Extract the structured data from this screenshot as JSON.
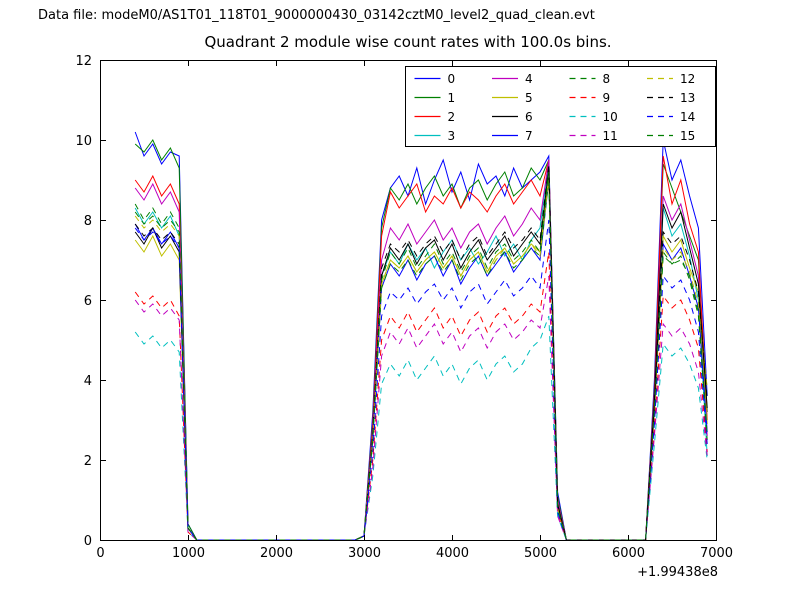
{
  "figure": {
    "data_file_label": "Data file: modeM0/AS1T01_118T01_9000000430_03142cztM0_level2_quad_clean.evt"
  },
  "chart_data": {
    "type": "line",
    "title": "Quadrant 2 module wise count rates with 100.0s bins.",
    "xlabel": "",
    "ylabel": "",
    "xlim": [
      0,
      7000
    ],
    "ylim": [
      0,
      12
    ],
    "xticks": [
      0,
      1000,
      2000,
      3000,
      4000,
      5000,
      6000,
      7000
    ],
    "yticks": [
      0,
      2,
      4,
      6,
      8,
      10,
      12
    ],
    "x_offset_text": "+1.99438e8",
    "grid": false,
    "legend_position": "upper right inside, 4 columns",
    "x": [
      400,
      500,
      600,
      700,
      800,
      900,
      1000,
      1100,
      1200,
      1300,
      1400,
      1500,
      1600,
      1700,
      1800,
      1900,
      2000,
      2100,
      2200,
      2300,
      2400,
      2500,
      2600,
      2700,
      2800,
      2900,
      3000,
      3100,
      3200,
      3300,
      3400,
      3500,
      3600,
      3700,
      3800,
      3900,
      4000,
      4100,
      4200,
      4300,
      4400,
      4500,
      4600,
      4700,
      4800,
      4900,
      5000,
      5100,
      5200,
      5300,
      5400,
      5500,
      5600,
      5700,
      5800,
      5900,
      6000,
      6100,
      6200,
      6300,
      6400,
      6500,
      6600,
      6700,
      6800,
      6900
    ],
    "series": [
      {
        "name": "0",
        "color": "#0000ff",
        "dashed": false,
        "values": [
          10.2,
          9.6,
          9.9,
          9.4,
          9.7,
          9.6,
          0.4,
          0,
          0,
          0,
          0,
          0,
          0,
          0,
          0,
          0,
          0,
          0,
          0,
          0,
          0,
          0,
          0,
          0,
          0,
          0,
          0.1,
          3.2,
          8.0,
          8.8,
          9.1,
          8.6,
          9.3,
          8.4,
          9.0,
          9.5,
          8.7,
          9.2,
          8.5,
          9.4,
          8.9,
          9.1,
          8.6,
          9.3,
          8.8,
          9.0,
          9.2,
          9.6,
          1.2,
          0,
          0,
          0,
          0,
          0,
          0,
          0,
          0,
          0,
          0,
          4.0,
          10.0,
          9.0,
          9.5,
          8.6,
          7.8,
          3.6
        ]
      },
      {
        "name": "1",
        "color": "#008000",
        "dashed": false,
        "values": [
          9.9,
          9.7,
          10.0,
          9.5,
          9.8,
          9.3,
          0.4,
          0,
          0,
          0,
          0,
          0,
          0,
          0,
          0,
          0,
          0,
          0,
          0,
          0,
          0,
          0,
          0,
          0,
          0,
          0,
          0.1,
          3.0,
          7.8,
          8.8,
          8.5,
          8.9,
          8.4,
          8.8,
          9.1,
          8.6,
          8.9,
          8.3,
          8.8,
          9.0,
          8.5,
          8.9,
          9.2,
          8.6,
          8.8,
          9.3,
          9.0,
          9.5,
          1.1,
          0,
          0,
          0,
          0,
          0,
          0,
          0,
          0,
          0,
          0,
          3.8,
          9.4,
          8.8,
          8.2,
          7.6,
          7.0,
          3.2
        ]
      },
      {
        "name": "2",
        "color": "#ff0000",
        "dashed": false,
        "values": [
          9.0,
          8.7,
          9.1,
          8.6,
          8.9,
          8.4,
          0.3,
          0,
          0,
          0,
          0,
          0,
          0,
          0,
          0,
          0,
          0,
          0,
          0,
          0,
          0,
          0,
          0,
          0,
          0,
          0,
          0.1,
          2.9,
          7.6,
          8.7,
          8.3,
          8.6,
          8.9,
          8.2,
          8.6,
          8.4,
          8.8,
          8.3,
          8.7,
          8.5,
          8.2,
          8.6,
          8.9,
          8.4,
          8.7,
          9.0,
          8.6,
          9.5,
          1.0,
          0,
          0,
          0,
          0,
          0,
          0,
          0,
          0,
          0,
          0,
          3.7,
          9.6,
          8.4,
          9.0,
          7.9,
          7.2,
          3.0
        ]
      },
      {
        "name": "3",
        "color": "#00bfbf",
        "dashed": false,
        "values": [
          8.3,
          7.9,
          8.2,
          7.8,
          8.1,
          7.6,
          0.3,
          0,
          0,
          0,
          0,
          0,
          0,
          0,
          0,
          0,
          0,
          0,
          0,
          0,
          0,
          0,
          0,
          0,
          0,
          0,
          0.1,
          2.6,
          6.6,
          7.2,
          6.9,
          7.4,
          7.0,
          7.3,
          6.8,
          7.2,
          7.5,
          7.0,
          7.3,
          6.9,
          7.2,
          7.6,
          7.1,
          7.4,
          7.0,
          7.5,
          7.8,
          9.4,
          0.9,
          0,
          0,
          0,
          0,
          0,
          0,
          0,
          0,
          0,
          0,
          3.4,
          8.3,
          7.6,
          7.9,
          7.1,
          6.0,
          2.1
        ]
      },
      {
        "name": "4",
        "color": "#bf00bf",
        "dashed": false,
        "values": [
          8.8,
          8.5,
          8.9,
          8.4,
          8.7,
          8.2,
          0.3,
          0,
          0,
          0,
          0,
          0,
          0,
          0,
          0,
          0,
          0,
          0,
          0,
          0,
          0,
          0,
          0,
          0,
          0,
          0,
          0.1,
          2.8,
          7.0,
          7.8,
          7.5,
          7.9,
          7.4,
          7.7,
          8.0,
          7.5,
          7.8,
          7.3,
          7.7,
          7.9,
          7.4,
          7.8,
          8.1,
          7.6,
          7.9,
          8.3,
          8.0,
          9.5,
          1.0,
          0,
          0,
          0,
          0,
          0,
          0,
          0,
          0,
          0,
          0,
          3.6,
          8.6,
          8.0,
          8.4,
          7.5,
          6.6,
          2.6
        ]
      },
      {
        "name": "5",
        "color": "#bfbf00",
        "dashed": false,
        "values": [
          7.5,
          7.2,
          7.6,
          7.1,
          7.4,
          7.0,
          0.3,
          0,
          0,
          0,
          0,
          0,
          0,
          0,
          0,
          0,
          0,
          0,
          0,
          0,
          0,
          0,
          0,
          0,
          0,
          0,
          0.1,
          2.5,
          6.4,
          7.0,
          6.8,
          7.1,
          6.7,
          7.0,
          7.2,
          6.8,
          7.1,
          6.6,
          7.0,
          7.2,
          6.7,
          7.1,
          7.3,
          6.9,
          7.1,
          7.4,
          7.2,
          9.1,
          0.9,
          0,
          0,
          0,
          0,
          0,
          0,
          0,
          0,
          0,
          0,
          3.3,
          7.6,
          7.2,
          7.5,
          6.8,
          6.2,
          2.9
        ]
      },
      {
        "name": "6",
        "color": "#000000",
        "dashed": false,
        "values": [
          7.7,
          7.4,
          7.8,
          7.3,
          7.6,
          7.2,
          0.3,
          0,
          0,
          0,
          0,
          0,
          0,
          0,
          0,
          0,
          0,
          0,
          0,
          0,
          0,
          0,
          0,
          0,
          0,
          0,
          0.1,
          2.6,
          6.6,
          7.3,
          7.0,
          7.4,
          6.9,
          7.3,
          7.5,
          7.0,
          7.4,
          6.8,
          7.2,
          7.5,
          7.0,
          7.3,
          7.6,
          7.1,
          7.4,
          7.7,
          7.4,
          9.3,
          0.9,
          0,
          0,
          0,
          0,
          0,
          0,
          0,
          0,
          0,
          0,
          3.5,
          8.4,
          7.8,
          8.2,
          7.3,
          6.4,
          3.3
        ]
      },
      {
        "name": "7",
        "color": "#0000ff",
        "dashed": false,
        "values": [
          7.9,
          7.5,
          7.8,
          7.4,
          7.7,
          7.3,
          0.3,
          0,
          0,
          0,
          0,
          0,
          0,
          0,
          0,
          0,
          0,
          0,
          0,
          0,
          0,
          0,
          0,
          0,
          0,
          0,
          0.1,
          2.5,
          6.3,
          6.9,
          6.6,
          7.0,
          6.5,
          6.9,
          7.1,
          6.6,
          7.0,
          6.4,
          6.8,
          7.1,
          6.6,
          6.9,
          7.2,
          6.7,
          7.0,
          7.3,
          7.0,
          9.0,
          0.8,
          0,
          0,
          0,
          0,
          0,
          0,
          0,
          0,
          0,
          0,
          3.2,
          7.4,
          7.0,
          7.3,
          6.6,
          5.8,
          2.7
        ]
      },
      {
        "name": "8",
        "color": "#008000",
        "dashed": true,
        "values": [
          8.4,
          8.0,
          8.3,
          7.9,
          8.2,
          7.8,
          0.3,
          0,
          0,
          0,
          0,
          0,
          0,
          0,
          0,
          0,
          0,
          0,
          0,
          0,
          0,
          0,
          0,
          0,
          0,
          0,
          0.1,
          2.5,
          6.3,
          6.9,
          6.7,
          7.0,
          6.6,
          6.9,
          7.1,
          6.7,
          7.0,
          6.5,
          6.9,
          7.1,
          6.6,
          7.0,
          7.2,
          6.8,
          7.0,
          7.3,
          7.1,
          9.0,
          0.8,
          0,
          0,
          0,
          0,
          0,
          0,
          0,
          0,
          0,
          0,
          3.1,
          7.2,
          6.9,
          7.1,
          6.5,
          5.6,
          2.5
        ]
      },
      {
        "name": "9",
        "color": "#ff0000",
        "dashed": true,
        "values": [
          6.2,
          5.9,
          6.1,
          5.8,
          6.0,
          5.6,
          0.2,
          0,
          0,
          0,
          0,
          0,
          0,
          0,
          0,
          0,
          0,
          0,
          0,
          0,
          0,
          0,
          0,
          0,
          0,
          0,
          0.1,
          2.0,
          5.0,
          5.6,
          5.3,
          5.7,
          5.2,
          5.5,
          5.8,
          5.3,
          5.6,
          5.1,
          5.5,
          5.7,
          5.2,
          5.6,
          5.8,
          5.4,
          5.6,
          5.9,
          5.7,
          7.2,
          0.7,
          0,
          0,
          0,
          0,
          0,
          0,
          0,
          0,
          0,
          0,
          2.8,
          6.1,
          5.8,
          6.0,
          5.5,
          4.8,
          2.2
        ]
      },
      {
        "name": "10",
        "color": "#00bfbf",
        "dashed": true,
        "values": [
          5.2,
          4.9,
          5.1,
          4.8,
          5.0,
          4.7,
          0.2,
          0,
          0,
          0,
          0,
          0,
          0,
          0,
          0,
          0,
          0,
          0,
          0,
          0,
          0,
          0,
          0,
          0,
          0,
          0,
          0.1,
          1.6,
          3.9,
          4.4,
          4.1,
          4.5,
          4.0,
          4.3,
          4.6,
          4.1,
          4.4,
          3.9,
          4.3,
          4.5,
          4.0,
          4.4,
          4.6,
          4.2,
          4.4,
          4.8,
          5.0,
          5.6,
          0.6,
          0,
          0,
          0,
          0,
          0,
          0,
          0,
          0,
          0,
          0,
          2.4,
          4.9,
          4.6,
          4.8,
          4.4,
          3.8,
          2.0
        ]
      },
      {
        "name": "11",
        "color": "#bf00bf",
        "dashed": true,
        "values": [
          6.0,
          5.7,
          5.9,
          5.6,
          5.8,
          5.5,
          0.2,
          0,
          0,
          0,
          0,
          0,
          0,
          0,
          0,
          0,
          0,
          0,
          0,
          0,
          0,
          0,
          0,
          0,
          0,
          0,
          0.1,
          1.8,
          4.6,
          5.2,
          4.9,
          5.3,
          4.8,
          5.1,
          5.4,
          4.9,
          5.2,
          4.7,
          5.1,
          5.3,
          4.8,
          5.2,
          5.4,
          5.0,
          5.2,
          5.5,
          5.3,
          6.6,
          0.6,
          0,
          0,
          0,
          0,
          0,
          0,
          0,
          0,
          0,
          0,
          2.6,
          5.4,
          5.1,
          5.3,
          4.9,
          4.2,
          2.1
        ]
      },
      {
        "name": "12",
        "color": "#bfbf00",
        "dashed": true,
        "values": [
          8.1,
          7.8,
          8.0,
          7.7,
          7.9,
          7.6,
          0.3,
          0,
          0,
          0,
          0,
          0,
          0,
          0,
          0,
          0,
          0,
          0,
          0,
          0,
          0,
          0,
          0,
          0,
          0,
          0,
          0.1,
          2.5,
          6.4,
          7.0,
          6.8,
          7.1,
          6.7,
          7.0,
          7.2,
          6.8,
          7.1,
          6.6,
          7.0,
          7.2,
          6.7,
          7.0,
          7.3,
          6.9,
          7.1,
          7.4,
          7.1,
          9.0,
          0.8,
          0,
          0,
          0,
          0,
          0,
          0,
          0,
          0,
          0,
          0,
          3.2,
          7.3,
          7.0,
          7.2,
          6.7,
          5.9,
          3.8
        ]
      },
      {
        "name": "13",
        "color": "#000000",
        "dashed": true,
        "values": [
          7.9,
          7.6,
          7.8,
          7.5,
          7.7,
          7.4,
          0.3,
          0,
          0,
          0,
          0,
          0,
          0,
          0,
          0,
          0,
          0,
          0,
          0,
          0,
          0,
          0,
          0,
          0,
          0,
          0,
          0.1,
          2.7,
          6.8,
          7.4,
          7.2,
          7.5,
          7.1,
          7.4,
          7.6,
          7.2,
          7.5,
          7.0,
          7.4,
          7.6,
          7.1,
          7.4,
          7.7,
          7.3,
          7.5,
          7.8,
          7.5,
          9.4,
          0.9,
          0,
          0,
          0,
          0,
          0,
          0,
          0,
          0,
          0,
          0,
          3.4,
          7.7,
          7.4,
          7.6,
          7.0,
          6.2,
          3.5
        ]
      },
      {
        "name": "14",
        "color": "#0000ff",
        "dashed": true,
        "values": [
          7.8,
          7.5,
          7.7,
          7.4,
          7.6,
          7.3,
          0.3,
          0,
          0,
          0,
          0,
          0,
          0,
          0,
          0,
          0,
          0,
          0,
          0,
          0,
          0,
          0,
          0,
          0,
          0,
          0,
          0.1,
          2.2,
          5.6,
          6.2,
          6.0,
          6.3,
          5.9,
          6.2,
          6.4,
          6.0,
          6.3,
          5.8,
          6.2,
          6.4,
          5.9,
          6.2,
          6.5,
          6.1,
          6.3,
          6.6,
          6.3,
          8.0,
          0.7,
          0,
          0,
          0,
          0,
          0,
          0,
          0,
          0,
          0,
          0,
          2.9,
          6.6,
          6.3,
          6.5,
          6.0,
          5.2,
          2.4
        ]
      },
      {
        "name": "15",
        "color": "#008000",
        "dashed": true,
        "values": [
          8.2,
          7.9,
          8.1,
          7.8,
          8.0,
          7.7,
          0.3,
          0,
          0,
          0,
          0,
          0,
          0,
          0,
          0,
          0,
          0,
          0,
          0,
          0,
          0,
          0,
          0,
          0,
          0,
          0,
          0.1,
          2.6,
          6.5,
          7.2,
          6.9,
          7.3,
          6.8,
          7.1,
          7.4,
          6.9,
          7.2,
          6.7,
          7.1,
          7.3,
          6.8,
          7.2,
          7.4,
          7.0,
          7.2,
          7.5,
          7.2,
          9.2,
          0.8,
          0,
          0,
          0,
          0,
          0,
          0,
          0,
          0,
          0,
          0,
          3.3,
          7.1,
          6.9,
          7.0,
          6.6,
          5.7,
          2.6
        ]
      }
    ]
  }
}
